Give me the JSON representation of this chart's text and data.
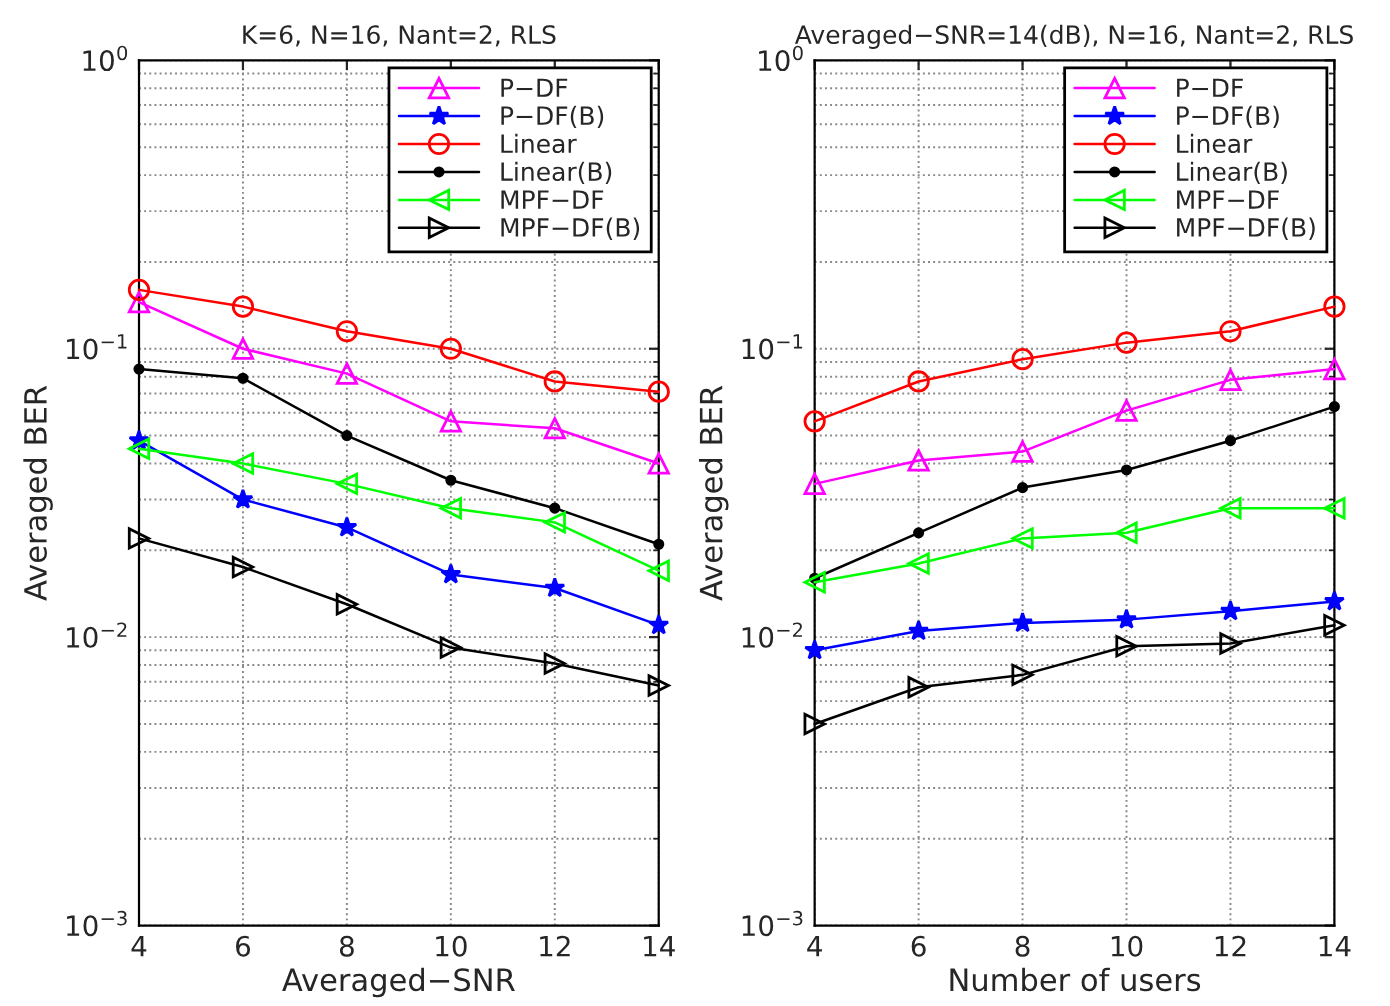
{
  "chart_data": [
    {
      "type": "line",
      "title": "K=6, N=16, Nant=2, RLS",
      "xlabel": "Averaged−SNR",
      "ylabel": "Averaged BER",
      "log": "y",
      "grid": true,
      "legend": "top right",
      "line_style": "solid",
      "x": [
        4,
        6,
        8,
        10,
        12,
        14
      ],
      "xlim": [
        4,
        14
      ],
      "xticks": [
        4,
        6,
        8,
        10,
        12,
        14
      ],
      "ylim": [
        0.001,
        1
      ],
      "yticks": [
        {
          "value": 0.001,
          "label": "10$^{−3}$"
        },
        {
          "value": 0.01,
          "label": "10$^{−2}$"
        },
        {
          "value": 0.1,
          "label": "10$^{−1}$"
        },
        {
          "value": 1,
          "label": "10$^{0}$"
        }
      ],
      "series": [
        {
          "name": "P−DF",
          "color": "#ff00ff",
          "marker": "triangle",
          "values": [
            0.145,
            0.1,
            0.082,
            0.056,
            0.053,
            0.04
          ]
        },
        {
          "name": "P−DF(B)",
          "color": "#0000ff",
          "marker": "star",
          "values": [
            0.048,
            0.03,
            0.024,
            0.0165,
            0.0148,
            0.011
          ]
        },
        {
          "name": "Linear",
          "color": "#ff0000",
          "marker": "circle",
          "values": [
            0.16,
            0.14,
            0.115,
            0.1,
            0.077,
            0.071
          ]
        },
        {
          "name": "Linear(B)",
          "color": "#000000",
          "marker": "point",
          "values": [
            0.085,
            0.079,
            0.05,
            0.035,
            0.028,
            0.021
          ]
        },
        {
          "name": "MPF−DF",
          "color": "#00ff00",
          "marker": "triangle_left",
          "values": [
            0.045,
            0.04,
            0.034,
            0.028,
            0.025,
            0.017
          ]
        },
        {
          "name": "MPF−DF(B)",
          "color": "#000000",
          "marker": "triangle_right",
          "values": [
            0.022,
            0.0175,
            0.013,
            0.0092,
            0.0081,
            0.0068
          ]
        }
      ]
    },
    {
      "type": "line",
      "title": "Averaged−SNR=14(dB), N=16, Nant=2, RLS",
      "xlabel": "Number of users",
      "ylabel": "Averaged BER",
      "log": "y",
      "grid": true,
      "legend": "top right",
      "line_style": "solid",
      "x": [
        4,
        6,
        8,
        10,
        12,
        14
      ],
      "xlim": [
        4,
        14
      ],
      "xticks": [
        4,
        6,
        8,
        10,
        12,
        14
      ],
      "ylim": [
        0.001,
        1
      ],
      "yticks": [
        {
          "value": 0.001,
          "label": "10$^{−3}$"
        },
        {
          "value": 0.01,
          "label": "10$^{−2}$"
        },
        {
          "value": 0.1,
          "label": "10$^{−1}$"
        },
        {
          "value": 1,
          "label": "10$^{0}$"
        }
      ],
      "series": [
        {
          "name": "P−DF",
          "color": "#ff00ff",
          "marker": "triangle",
          "values": [
            0.034,
            0.041,
            0.044,
            0.061,
            0.078,
            0.085
          ]
        },
        {
          "name": "P−DF(B)",
          "color": "#0000ff",
          "marker": "star",
          "values": [
            0.009,
            0.0105,
            0.0112,
            0.0115,
            0.0123,
            0.0133
          ]
        },
        {
          "name": "Linear",
          "color": "#ff0000",
          "marker": "circle",
          "values": [
            0.056,
            0.077,
            0.092,
            0.105,
            0.115,
            0.14
          ]
        },
        {
          "name": "Linear(B)",
          "color": "#000000",
          "marker": "point",
          "values": [
            0.016,
            0.023,
            0.033,
            0.038,
            0.048,
            0.063
          ]
        },
        {
          "name": "MPF−DF",
          "color": "#00ff00",
          "marker": "triangle_left",
          "values": [
            0.0155,
            0.018,
            0.022,
            0.023,
            0.028,
            0.028
          ]
        },
        {
          "name": "MPF−DF(B)",
          "color": "#000000",
          "marker": "triangle_right",
          "values": [
            0.005,
            0.0067,
            0.0074,
            0.0093,
            0.0095,
            0.011
          ]
        }
      ]
    }
  ]
}
